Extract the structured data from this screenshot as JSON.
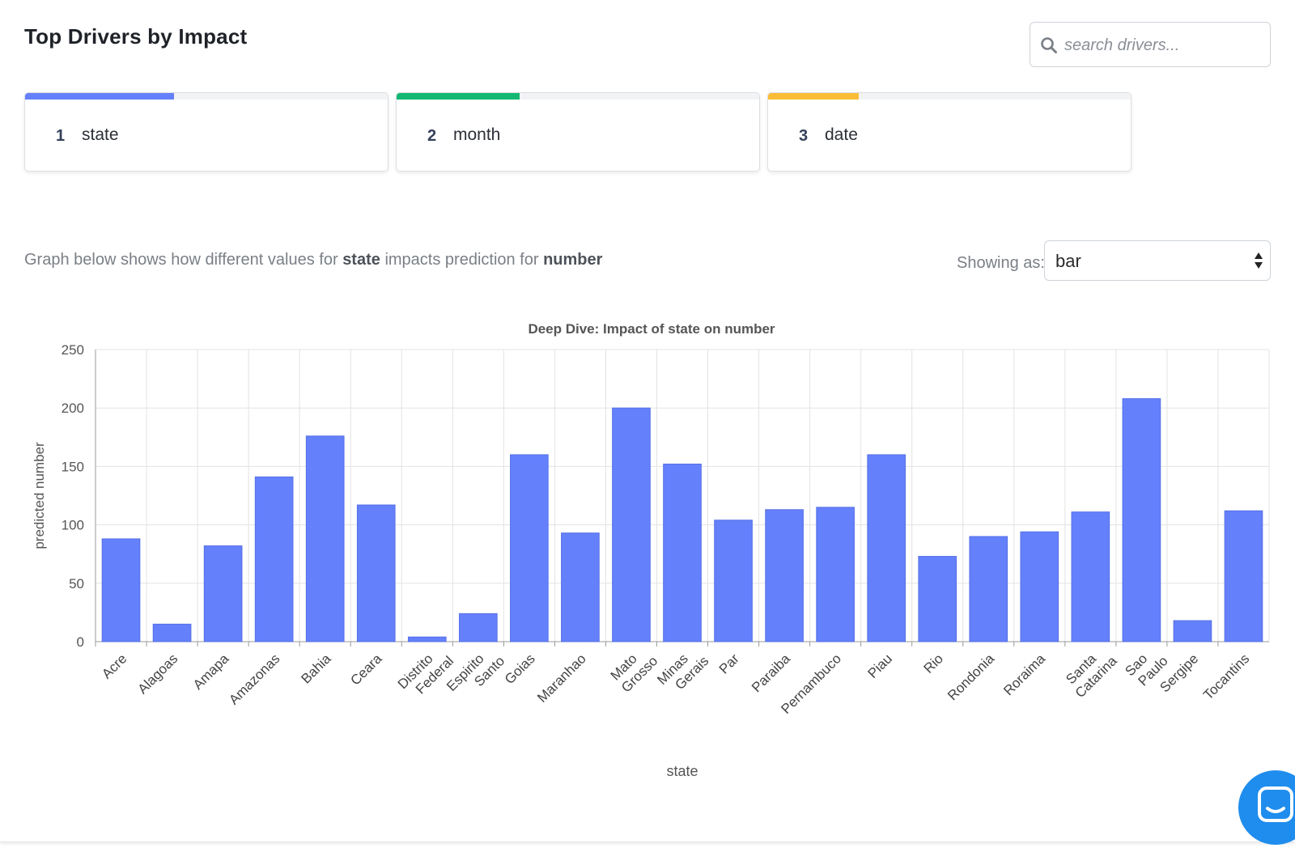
{
  "header": {
    "title": "Top Drivers by Impact",
    "search_placeholder": "search drivers..."
  },
  "drivers": [
    {
      "rank": "1",
      "name": "state",
      "impact": 0.41,
      "color": "#6580fb"
    },
    {
      "rank": "2",
      "name": "month",
      "impact": 0.34,
      "color": "#14b872"
    },
    {
      "rank": "3",
      "name": "date",
      "impact": 0.25,
      "color": "#fbbd37"
    }
  ],
  "caption": {
    "prefix": "Graph below shows how different values for ",
    "feature": "state",
    "middle": " impacts prediction for ",
    "target": "number"
  },
  "view_control": {
    "label": "Showing as:",
    "value": "bar"
  },
  "chart_data": {
    "type": "bar",
    "title": "Deep Dive: Impact of state on number",
    "xlabel": "state",
    "ylabel": "predicted number",
    "ylim": [
      0,
      250
    ],
    "yticks": [
      0,
      50,
      100,
      150,
      200,
      250
    ],
    "grid": true,
    "bar_color": "#6580fb",
    "categories": [
      "Acre",
      "Alagoas",
      "Amapa",
      "Amazonas",
      "Bahia",
      "Ceara",
      "Distrito Federal",
      "Espirito Santo",
      "Goias",
      "Maranhao",
      "Mato Grosso",
      "Minas Gerais",
      "Par",
      "Paraiba",
      "Pernambuco",
      "Piau",
      "Rio",
      "Rondonia",
      "Roraima",
      "Santa Catarina",
      "Sao Paulo",
      "Sergipe",
      "Tocantins"
    ],
    "values": [
      88,
      15,
      82,
      141,
      176,
      117,
      4,
      24,
      160,
      93,
      200,
      152,
      104,
      113,
      115,
      160,
      73,
      90,
      94,
      111,
      208,
      18,
      112
    ]
  },
  "colors": {
    "accent": "#6580fb",
    "chat_button": "#1f8ded"
  }
}
